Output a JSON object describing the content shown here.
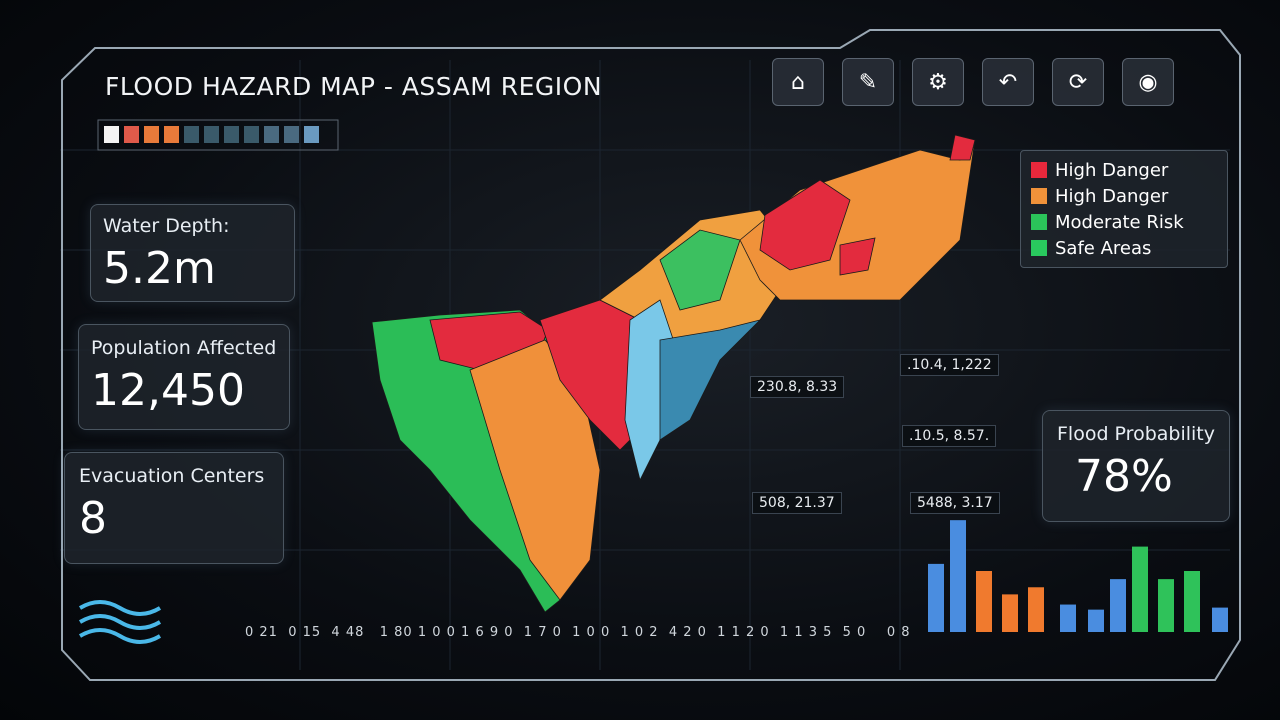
{
  "header": {
    "title": "FLOOD HAZARD MAP - ASSAM REGION"
  },
  "stats": [
    {
      "label": "Water Depth:",
      "value": "5.2m"
    },
    {
      "label": "Population Affected",
      "value": "12,450"
    },
    {
      "label": "Evacuation Centers",
      "value": "8"
    }
  ],
  "legend": [
    {
      "label": "High Danger",
      "color": "#e8283c"
    },
    {
      "label": "High Danger",
      "color": "#f0923a"
    },
    {
      "label": "Moderate Risk",
      "color": "#2bc45a"
    },
    {
      "label": "Safe Areas",
      "color": "#29c95e"
    }
  ],
  "coordinates": [
    "230.8, 8.33",
    ".10.4, 1,222",
    ".10.5, 8.57.",
    "508, 21.37",
    "5488, 3.17"
  ],
  "probability": {
    "label": "Flood Probability",
    "value": "78%"
  },
  "scale_text": "0 21  0 15  4 48   1 80 1 0 0 1 6 9 0  1 7 0  1 0 0  1 0 2  4 2 0  1 1 2 0  1 1 3 5  5 0    0 8",
  "mini_chart": {
    "ylim": [
      0,
      120
    ],
    "values": [
      67,
      110,
      60,
      37,
      44,
      27,
      22,
      52,
      84,
      52,
      60,
      24
    ],
    "colors": [
      "#4a8de0",
      "#4a8de0",
      "#f07a2e",
      "#f07a2e",
      "#f07a2e",
      "#4a8de0",
      "#4a8de0",
      "#4a8de0",
      "#2fc25a",
      "#2fc25a",
      "#2fc25a",
      "#4a8de0"
    ]
  }
}
